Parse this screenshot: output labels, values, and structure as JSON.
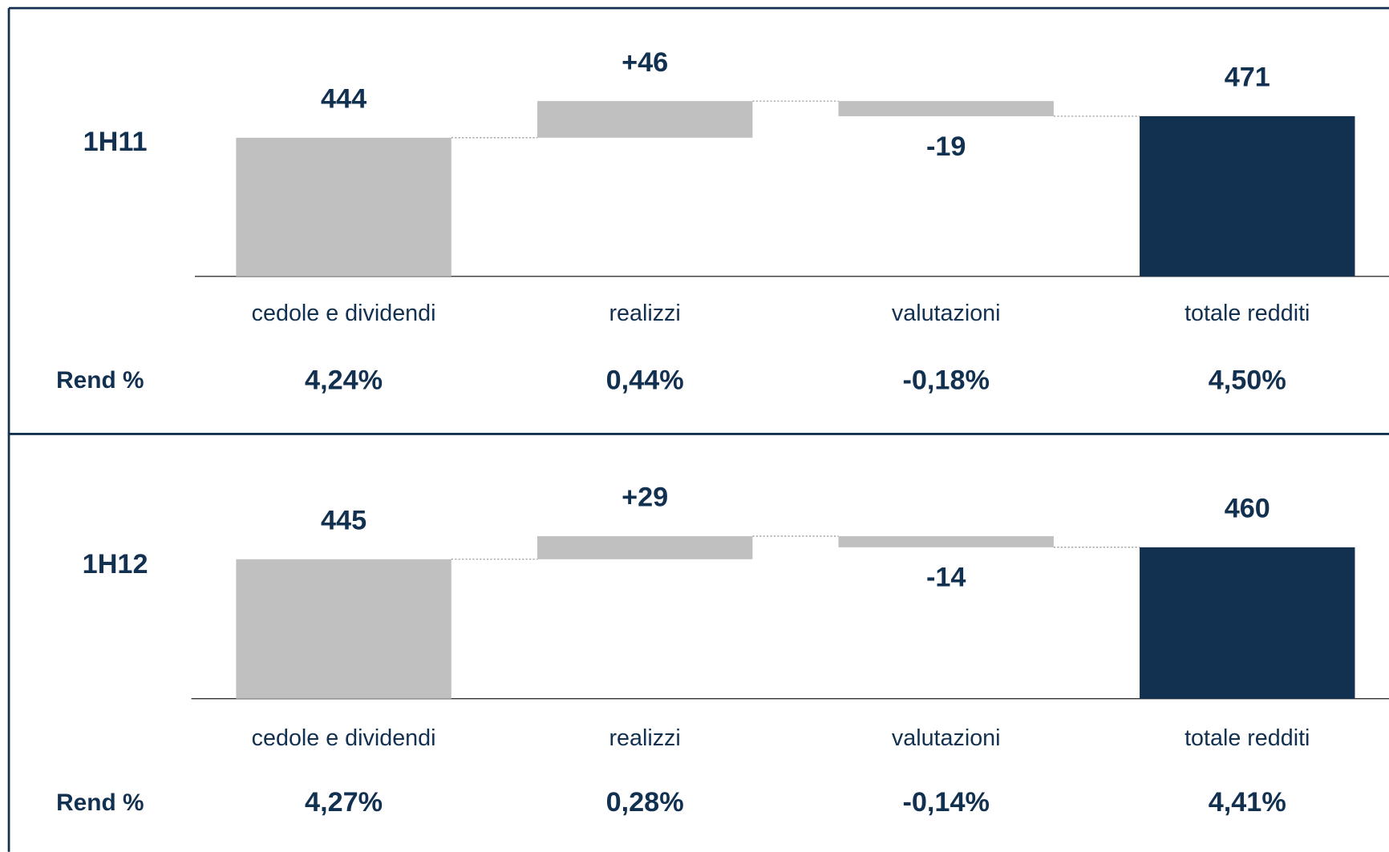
{
  "chart_data": [
    {
      "type": "waterfall",
      "label": "1H11",
      "categories": [
        "cedole e dividendi",
        "realizzi",
        "valutazioni",
        "totale redditi"
      ],
      "values": [
        444,
        46,
        -19,
        471
      ],
      "value_labels": [
        "444",
        "+46",
        "-19",
        "471"
      ],
      "measure": [
        "absolute",
        "relative",
        "relative",
        "total"
      ],
      "returns_label": "Rend %",
      "returns": [
        "4,24%",
        "0,44%",
        "-0,18%",
        "4,50%"
      ],
      "ylim": [
        270,
        550
      ],
      "color": "#c0c0c0",
      "total_color": "#12304f"
    },
    {
      "type": "waterfall",
      "label": "1H12",
      "categories": [
        "cedole e dividendi",
        "realizzi",
        "valutazioni",
        "totale redditi"
      ],
      "values": [
        445,
        29,
        -14,
        460
      ],
      "value_labels": [
        "445",
        "+29",
        "-14",
        "460"
      ],
      "measure": [
        "absolute",
        "relative",
        "relative",
        "total"
      ],
      "returns_label": "Rend %",
      "returns": [
        "4,27%",
        "0,28%",
        "-0,14%",
        "4,41%"
      ],
      "ylim": [
        270,
        550
      ],
      "color": "#c0c0c0",
      "total_color": "#12304f"
    }
  ]
}
